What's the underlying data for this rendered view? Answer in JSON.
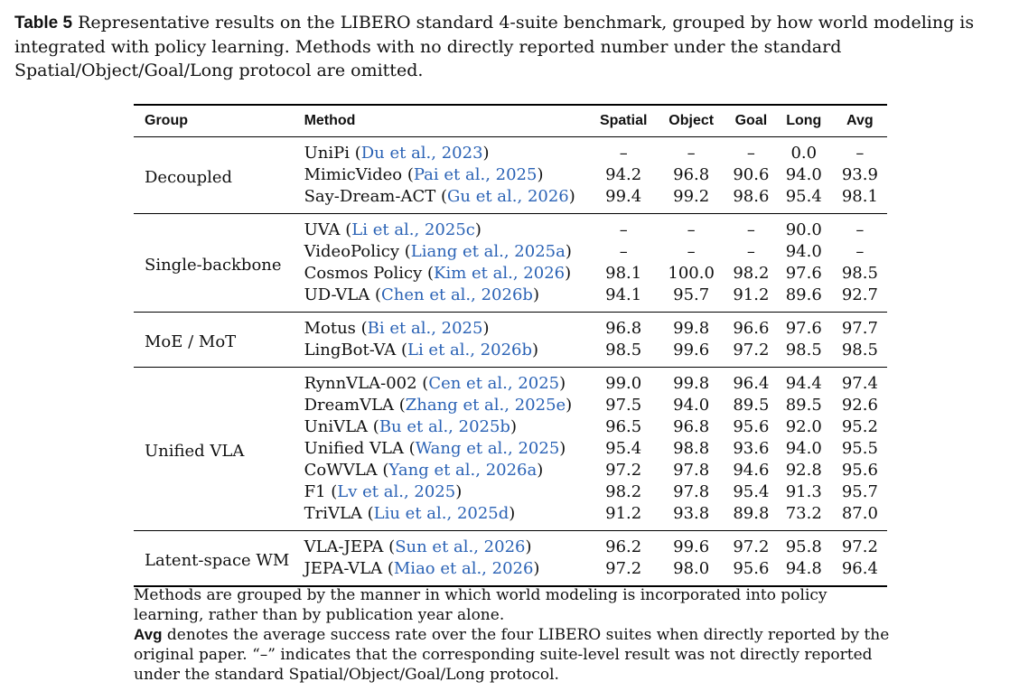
{
  "caption": {
    "label": "Table 5",
    "text": "Representative results on the LIBERO standard 4-suite benchmark, grouped by how world modeling is integrated with policy learning. Methods with no directly reported number under the standard Spatial/Object/Goal/Long protocol are omitted."
  },
  "table": {
    "headers": {
      "group": "Group",
      "method": "Method",
      "spatial": "Spatial",
      "object": "Object",
      "goal": "Goal",
      "long": "Long",
      "avg": "Avg"
    },
    "groups": [
      {
        "name": "Decoupled",
        "rows": [
          {
            "method": "UniPi",
            "cite": "Du et al., 2023",
            "spatial": "–",
            "object": "–",
            "goal": "–",
            "long": "0.0",
            "avg": "–"
          },
          {
            "method": "MimicVideo",
            "cite": "Pai et al., 2025",
            "spatial": "94.2",
            "object": "96.8",
            "goal": "90.6",
            "long": "94.0",
            "avg": "93.9"
          },
          {
            "method": "Say-Dream-ACT",
            "cite": "Gu et al., 2026",
            "spatial": "99.4",
            "object": "99.2",
            "goal": "98.6",
            "long": "95.4",
            "avg": "98.1"
          }
        ]
      },
      {
        "name": "Single-backbone",
        "rows": [
          {
            "method": "UVA",
            "cite": "Li et al., 2025c",
            "spatial": "–",
            "object": "–",
            "goal": "–",
            "long": "90.0",
            "avg": "–"
          },
          {
            "method": "VideoPolicy",
            "cite": "Liang et al., 2025a",
            "spatial": "–",
            "object": "–",
            "goal": "–",
            "long": "94.0",
            "avg": "–"
          },
          {
            "method": "Cosmos Policy",
            "cite": "Kim et al., 2026",
            "spatial": "98.1",
            "object": "100.0",
            "goal": "98.2",
            "long": "97.6",
            "avg": "98.5"
          },
          {
            "method": "UD-VLA",
            "cite": "Chen et al., 2026b",
            "spatial": "94.1",
            "object": "95.7",
            "goal": "91.2",
            "long": "89.6",
            "avg": "92.7"
          }
        ]
      },
      {
        "name": "MoE / MoT",
        "rows": [
          {
            "method": "Motus",
            "cite": "Bi et al., 2025",
            "spatial": "96.8",
            "object": "99.8",
            "goal": "96.6",
            "long": "97.6",
            "avg": "97.7"
          },
          {
            "method": "LingBot-VA",
            "cite": "Li et al., 2026b",
            "spatial": "98.5",
            "object": "99.6",
            "goal": "97.2",
            "long": "98.5",
            "avg": "98.5"
          }
        ]
      },
      {
        "name": "Unified VLA",
        "rows": [
          {
            "method": "RynnVLA-002",
            "cite": "Cen et al., 2025",
            "spatial": "99.0",
            "object": "99.8",
            "goal": "96.4",
            "long": "94.4",
            "avg": "97.4"
          },
          {
            "method": "DreamVLA",
            "cite": "Zhang et al., 2025e",
            "spatial": "97.5",
            "object": "94.0",
            "goal": "89.5",
            "long": "89.5",
            "avg": "92.6"
          },
          {
            "method": "UniVLA",
            "cite": "Bu et al., 2025b",
            "spatial": "96.5",
            "object": "96.8",
            "goal": "95.6",
            "long": "92.0",
            "avg": "95.2"
          },
          {
            "method": "Unified VLA",
            "cite": "Wang et al., 2025",
            "spatial": "95.4",
            "object": "98.8",
            "goal": "93.6",
            "long": "94.0",
            "avg": "95.5"
          },
          {
            "method": "CoWVLA",
            "cite": "Yang et al., 2026a",
            "spatial": "97.2",
            "object": "97.8",
            "goal": "94.6",
            "long": "92.8",
            "avg": "95.6"
          },
          {
            "method": "F1",
            "cite": "Lv et al., 2025",
            "spatial": "98.2",
            "object": "97.8",
            "goal": "95.4",
            "long": "91.3",
            "avg": "95.7"
          },
          {
            "method": "TriVLA",
            "cite": "Liu et al., 2025d",
            "spatial": "91.2",
            "object": "93.8",
            "goal": "89.8",
            "long": "73.2",
            "avg": "87.0"
          }
        ]
      },
      {
        "name": "Latent-space WM",
        "rows": [
          {
            "method": "VLA-JEPA",
            "cite": "Sun et al., 2026",
            "spatial": "96.2",
            "object": "99.6",
            "goal": "97.2",
            "long": "95.8",
            "avg": "97.2"
          },
          {
            "method": "JEPA-VLA",
            "cite": "Miao et al., 2026",
            "spatial": "97.2",
            "object": "98.0",
            "goal": "95.6",
            "long": "94.8",
            "avg": "96.4"
          }
        ]
      }
    ]
  },
  "notes": {
    "first": "Methods are grouped by the manner in which world modeling is incorporated into policy learning, rather than by publication year alone.",
    "avg_term": "Avg",
    "second": "denotes the average success rate over the four LIBERO suites when directly reported by the original paper. “–” indicates that the corresponding suite-level result was not directly reported under the standard Spatial/Object/Goal/Long protocol."
  },
  "colors": {
    "citation": "#2a62b5",
    "text": "#111111"
  }
}
